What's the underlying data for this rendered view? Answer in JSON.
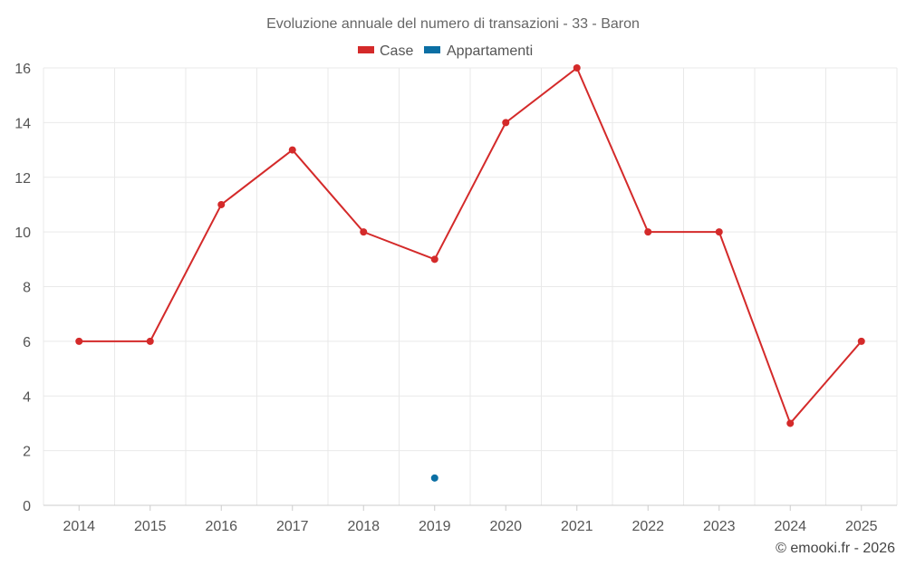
{
  "chart_data": {
    "type": "line",
    "title": "Evoluzione annuale del numero di transazioni - 33 - Baron",
    "categories": [
      "2014",
      "2015",
      "2016",
      "2017",
      "2018",
      "2019",
      "2020",
      "2021",
      "2022",
      "2023",
      "2024",
      "2025"
    ],
    "series": [
      {
        "name": "Case",
        "color": "#d42a2a",
        "values": [
          6,
          6,
          11,
          13,
          10,
          9,
          14,
          16,
          10,
          10,
          3,
          6
        ]
      },
      {
        "name": "Appartamenti",
        "color": "#0b6fa4",
        "values": [
          null,
          null,
          null,
          null,
          null,
          1,
          null,
          null,
          null,
          null,
          null,
          null
        ]
      }
    ],
    "y_ticks": [
      "0",
      "2",
      "4",
      "6",
      "8",
      "10",
      "12",
      "14",
      "16"
    ],
    "ylim": [
      0,
      16
    ],
    "xlabel": "",
    "ylabel": "",
    "grid": true,
    "legend_position": "top-center"
  },
  "footer": {
    "credit": "© emooki.fr - 2026"
  }
}
